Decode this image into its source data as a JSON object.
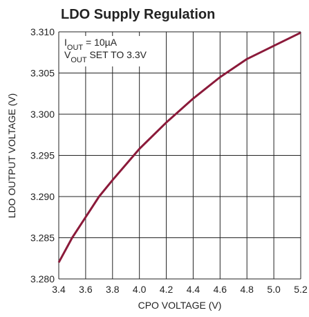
{
  "chart_data": {
    "type": "line",
    "title": "LDO Supply Regulation",
    "xlabel": "CPO VOLTAGE (V)",
    "ylabel": "LDO OUTPUT VOLTAGE (V)",
    "annotations": [
      [
        "I",
        "OUT",
        " = 10µA"
      ],
      [
        "V",
        "OUT",
        " SET TO 3.3V"
      ]
    ],
    "x": [
      3.4,
      3.5,
      3.6,
      3.7,
      3.8,
      4.0,
      4.2,
      4.4,
      4.6,
      4.8,
      5.0,
      5.2
    ],
    "series": [
      {
        "name": "VOUT",
        "color": "#8b1a3a",
        "values": [
          3.282,
          3.285,
          3.2875,
          3.29,
          3.292,
          3.2958,
          3.299,
          3.3019,
          3.3045,
          3.3067,
          3.3083,
          3.3099
        ]
      }
    ],
    "xlim": [
      3.4,
      5.2
    ],
    "xticks": [
      3.4,
      3.6,
      3.8,
      {
        "value": 4.0,
        "label": "4.0"
      },
      4.2,
      4.4,
      4.6,
      4.8,
      {
        "value": 5.0,
        "label": "5.0"
      },
      5.2
    ],
    "ylim": [
      3.28,
      3.31
    ],
    "yticks": [
      {
        "value": 3.28,
        "label": "3.280"
      },
      3.285,
      {
        "value": 3.29,
        "label": "3.290"
      },
      3.295,
      {
        "value": 3.3,
        "label": "3.300"
      },
      3.305,
      {
        "value": 3.31,
        "label": "3.310"
      }
    ],
    "grid": true
  }
}
